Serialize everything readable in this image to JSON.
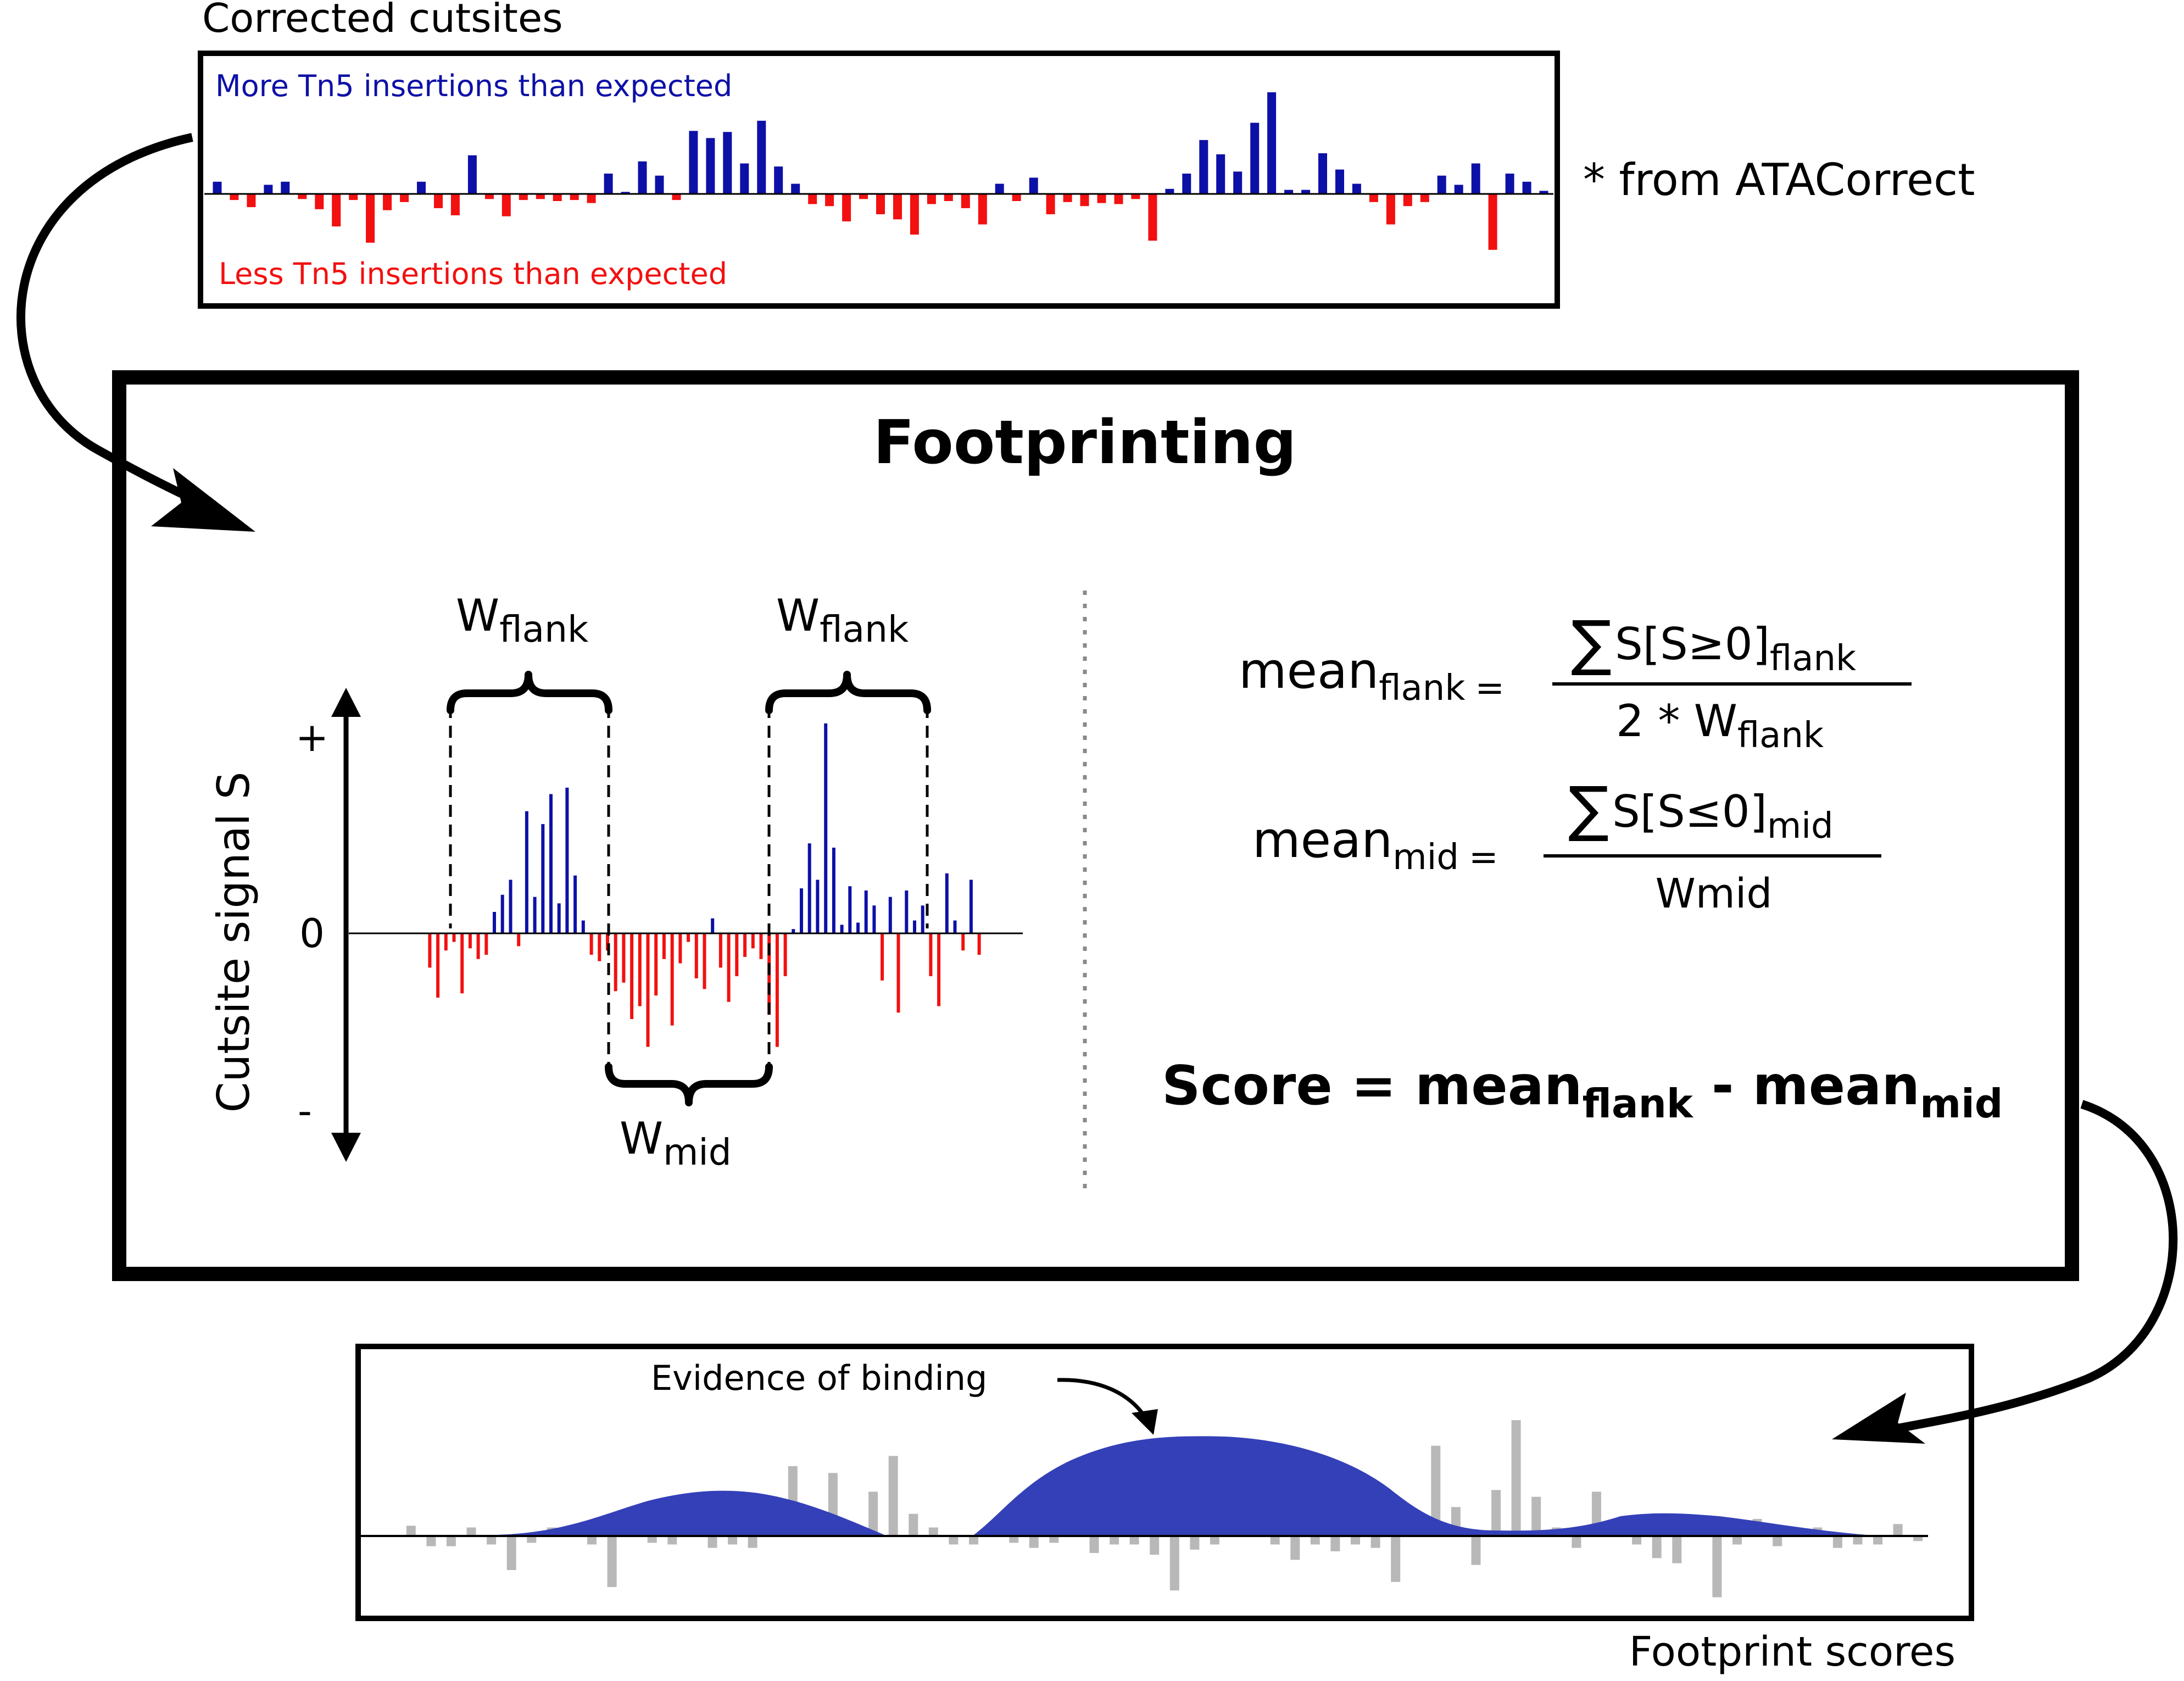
{
  "corrected_panel": {
    "title": "Corrected cutsites",
    "more_label": "More Tn5 insertions than expected",
    "less_label": "Less Tn5 insertions than expected",
    "note": "* from ATACorrect",
    "bars": [
      0.12,
      -0.06,
      -0.13,
      0.09,
      0.12,
      -0.05,
      -0.15,
      -0.32,
      -0.06,
      -0.48,
      -0.16,
      -0.08,
      0.12,
      -0.14,
      -0.21,
      0.38,
      -0.05,
      -0.22,
      -0.06,
      -0.05,
      -0.07,
      -0.06,
      -0.09,
      0.2,
      0.02,
      0.32,
      0.18,
      -0.06,
      0.62,
      0.55,
      0.61,
      0.3,
      0.72,
      0.27,
      0.1,
      -0.1,
      -0.12,
      -0.27,
      -0.05,
      -0.2,
      -0.25,
      -0.4,
      -0.1,
      -0.07,
      -0.14,
      -0.3,
      0.1,
      -0.07,
      0.16,
      -0.2,
      -0.08,
      -0.12,
      -0.09,
      -0.1,
      -0.05,
      -0.46,
      0.05,
      0.2,
      0.53,
      0.39,
      0.22,
      0.7,
      1.0,
      0.04,
      0.04,
      0.4,
      0.24,
      0.1,
      -0.08,
      -0.3,
      -0.12,
      -0.08,
      0.18,
      0.09,
      0.3,
      -0.55,
      0.2,
      0.12,
      0.03
    ],
    "colors": {
      "positive": "#0d10a6",
      "negative": "#f21010"
    }
  },
  "footprinting_panel": {
    "title": "Footprinting",
    "y_axis_label": "Cutsite signal S",
    "y_tick_plus": "+",
    "y_tick_zero": "0",
    "y_tick_minus": "-",
    "w_flank_left": {
      "main": "W",
      "sub": "flank"
    },
    "w_flank_right": {
      "main": "W",
      "sub": "flank"
    },
    "w_mid": {
      "main": "W",
      "sub": "mid"
    },
    "mini_bars": [
      -0.16,
      -0.3,
      -0.08,
      -0.04,
      -0.28,
      -0.07,
      -0.12,
      -0.1,
      0.1,
      0.18,
      0.25,
      -0.06,
      0.57,
      0.17,
      0.51,
      0.65,
      0.14,
      0.68,
      0.27,
      0.06,
      -0.1,
      -0.13,
      -0.08,
      -0.27,
      -0.23,
      -0.4,
      -0.34,
      -0.53,
      -0.29,
      -0.12,
      -0.43,
      -0.14,
      -0.04,
      -0.21,
      -0.26,
      0.07,
      -0.16,
      -0.32,
      -0.2,
      -0.11,
      -0.07,
      -0.12,
      -0.38,
      -0.53,
      -0.2,
      0.02,
      0.21,
      0.42,
      0.25,
      0.98,
      0.4,
      0.04,
      0.22,
      0.05,
      0.2,
      0.13,
      -0.22,
      0.17,
      -0.37,
      0.2,
      0.06,
      0.13,
      -0.2,
      -0.34,
      0.28,
      0.06,
      -0.08,
      0.25,
      -0.1
    ],
    "formula_flank": {
      "lhs": "mean",
      "lhs_sub": "flank",
      "eq": "=",
      "num_prefix": "S[S≥0]",
      "num_sub": "flank",
      "den_prefix": "2 * W",
      "den_sub": "flank"
    },
    "formula_mid": {
      "lhs": "mean",
      "lhs_sub": "mid",
      "eq": "=",
      "num_prefix": "S[S≤0]",
      "num_sub": "mid",
      "den": "Wmid"
    },
    "score": {
      "prefix": "Score = mean",
      "sub1": "flank",
      "middle": " - mean",
      "sub2": "mid"
    },
    "colors": {
      "positive": "#0d10a6",
      "negative": "#f21010"
    }
  },
  "scores_panel": {
    "annotation": "Evidence of binding",
    "caption": "Footprint scores",
    "grey_bars": [
      0.06,
      -0.06,
      -0.06,
      0.05,
      -0.05,
      -0.2,
      -0.04,
      0.05,
      0.04,
      -0.05,
      -0.3,
      0.05,
      -0.04,
      -0.05,
      0.13,
      -0.07,
      -0.05,
      -0.07,
      0.07,
      0.41,
      0.07,
      0.37,
      0.07,
      0.26,
      0.47,
      0.13,
      0.05,
      -0.05,
      -0.05,
      0.05,
      -0.04,
      -0.07,
      -0.04,
      0.05,
      -0.1,
      -0.05,
      -0.05,
      -0.11,
      -0.32,
      -0.08,
      -0.05,
      0.04,
      0.07,
      -0.05,
      -0.14,
      -0.05,
      -0.09,
      -0.05,
      -0.07,
      -0.27,
      0.05,
      0.53,
      0.17,
      -0.17,
      0.27,
      0.68,
      0.23,
      0.05,
      -0.07,
      0.26,
      0.05,
      -0.05,
      -0.13,
      -0.16,
      0.05,
      -0.36,
      -0.05,
      0.1,
      -0.06,
      0.05,
      0.05,
      -0.07,
      -0.05,
      -0.05,
      0.07,
      -0.03
    ],
    "curve_color": "#3440b8",
    "bar_color": "#b8b8b8"
  }
}
